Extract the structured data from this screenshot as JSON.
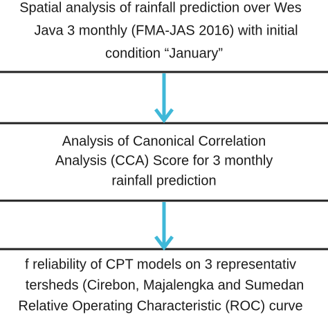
{
  "nodes": [
    {
      "lines": [
        "Spatial analysis of rainfall prediction over Wes",
        "Java 3 monthly (FMA-JAS 2016) with initial",
        "condition “January”"
      ]
    },
    {
      "lines": [
        "Analysis of Canonical Correlation",
        "Analysis (CCA) Score for 3 monthly",
        "rainfall prediction"
      ]
    },
    {
      "lines": [
        "f reliability of  CPT models on 3 representativ",
        "tersheds (Cirebon, Majalengka and Sumedan",
        "Relative Operating Characteristic (ROC) curve"
      ]
    }
  ]
}
